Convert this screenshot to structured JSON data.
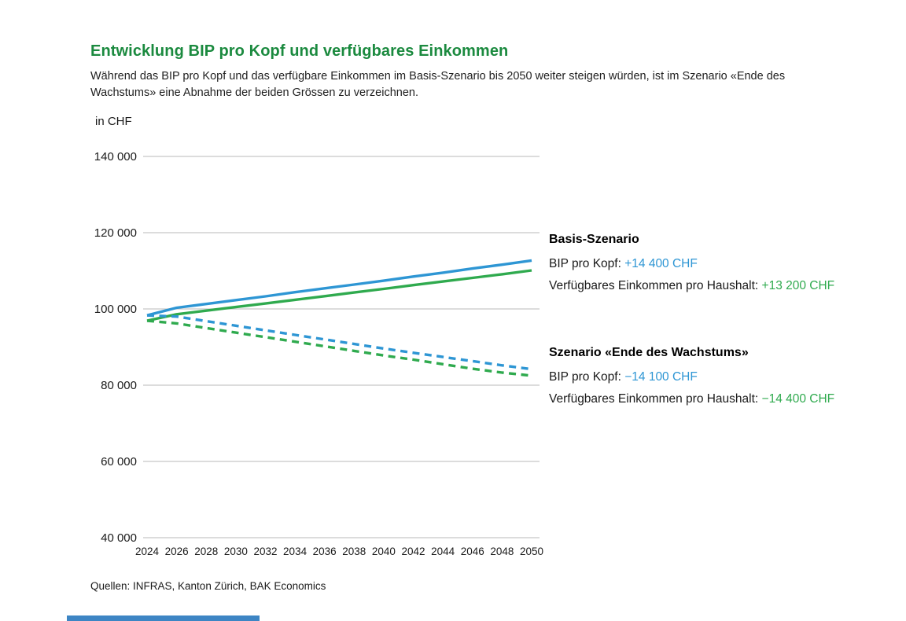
{
  "page": {
    "title": "Entwicklung BIP pro Kopf und verfügbares Einkommen",
    "subtitle": "Während das BIP pro Kopf und das verfügbare Einkommen im Basis-Szenario bis 2050 weiter steigen würden, ist im Szenario «Ende des Wachstums» eine Abnahme der beiden Grössen zu verzeichnen.",
    "unit_label": "in CHF",
    "source": "Quellen: INFRAS, Kanton Zürich, BAK Economics"
  },
  "colors": {
    "title_green": "#1b8a3f",
    "line_blue": "#2e96d4",
    "line_green": "#2faa4e",
    "gridline": "#c8c8c8",
    "text": "#1a1a1a",
    "footer_bar_blue": "#3d85c4"
  },
  "chart_data": {
    "type": "line",
    "title": "Entwicklung BIP pro Kopf und verfügbares Einkommen",
    "xlabel": "",
    "ylabel": "in CHF",
    "ylim": [
      40000,
      140000
    ],
    "grid": true,
    "legend_position": "right-annotations",
    "x": [
      2024,
      2026,
      2028,
      2030,
      2032,
      2034,
      2036,
      2038,
      2040,
      2042,
      2044,
      2046,
      2048,
      2050
    ],
    "x_tick_labels": [
      "2024",
      "2026",
      "2028",
      "2030",
      "2032",
      "2034",
      "2036",
      "2038",
      "2040",
      "2042",
      "2044",
      "2046",
      "2048",
      "2050"
    ],
    "y_ticks": [
      {
        "value": 140000,
        "label": "140 000"
      },
      {
        "value": 120000,
        "label": "120 000"
      },
      {
        "value": 100000,
        "label": "100 000"
      },
      {
        "value": 80000,
        "label": "80 000"
      },
      {
        "value": 60000,
        "label": "60 000"
      },
      {
        "value": 40000,
        "label": "40 000"
      }
    ],
    "series": [
      {
        "name": "BIP pro Kopf – Basis-Szenario",
        "color": "#2e96d4",
        "style": "solid",
        "delta_2024_2050": "+14 400 CHF",
        "values": [
          98300,
          100300,
          101300,
          102300,
          103300,
          104400,
          105400,
          106400,
          107400,
          108500,
          109500,
          110600,
          111600,
          112700
        ]
      },
      {
        "name": "Verfügbares Einkommen pro Haushalt – Basis-Szenario",
        "color": "#2faa4e",
        "style": "solid",
        "delta_2024_2050": "+13 200 CHF",
        "values": [
          96900,
          98600,
          99550,
          100500,
          101450,
          102400,
          103350,
          104300,
          105250,
          106250,
          107200,
          108150,
          109100,
          110100
        ]
      },
      {
        "name": "BIP pro Kopf – Szenario «Ende des Wachstums»",
        "color": "#2e96d4",
        "style": "dashed",
        "delta_2024_2050": "−14 100 CHF",
        "values": [
          98300,
          98000,
          96800,
          95600,
          94400,
          93200,
          92000,
          90800,
          89600,
          88500,
          87400,
          86300,
          85200,
          84200
        ]
      },
      {
        "name": "Verfügbares Einkommen pro Haushalt – Szenario «Ende des Wachstums»",
        "color": "#2faa4e",
        "style": "dashed",
        "delta_2024_2050": "−14 400 CHF",
        "values": [
          96900,
          96200,
          95000,
          93800,
          92600,
          91400,
          90200,
          89000,
          87800,
          86700,
          85500,
          84300,
          83300,
          82500
        ]
      }
    ]
  },
  "annotations": {
    "basis": {
      "heading": "Basis-Szenario",
      "line1_label": "BIP pro Kopf: ",
      "line1_value": "+14 400 CHF",
      "line2_label": "Verfügbares Einkommen pro Haushalt: ",
      "line2_value": "+13 200 CHF"
    },
    "ende": {
      "heading": "Szenario «Ende des Wachstums»",
      "line1_label": "BIP pro Kopf: ",
      "line1_value": "−14 100 CHF",
      "line2_label": "Verfügbares Einkommen pro Haushalt: ",
      "line2_value": "−14 400 CHF"
    }
  }
}
